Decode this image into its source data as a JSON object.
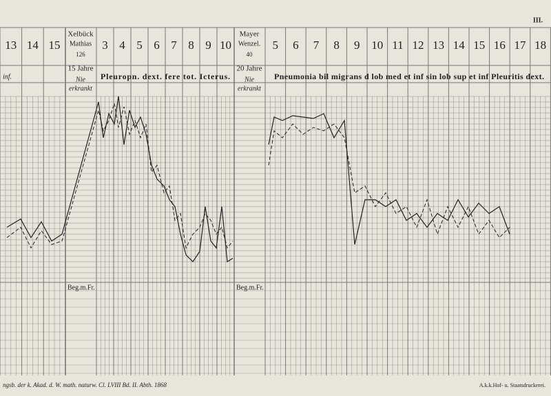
{
  "header": {
    "page": "III."
  },
  "left": {
    "pre_days": [
      "13",
      "14",
      "15"
    ],
    "note": "inf.",
    "patient": {
      "surname": "Xelbück",
      "given": "Mathias",
      "number": "126",
      "age": "15 Jahre",
      "history": [
        "Nie",
        "erkrankt"
      ]
    },
    "days": [
      "3",
      "4",
      "5",
      "6",
      "7",
      "8",
      "9",
      "10"
    ],
    "diagnosis": "Pleuropn. dext. fere tot. Icterus.",
    "onset": "Beg.m.Fr."
  },
  "right": {
    "patient": {
      "surname": "Mayer",
      "given": "Wenzel.",
      "number": "40",
      "age": "20 Jahre",
      "history": [
        "Nie",
        "erkrankt"
      ]
    },
    "days": [
      "5",
      "6",
      "7",
      "8",
      "9",
      "10",
      "11",
      "12",
      "13",
      "14",
      "15",
      "16",
      "17",
      "18"
    ],
    "diagnosis": "Pneumonia bil migrans d lob med et inf sin lob sup et inf Pleuritis dext.",
    "onset": "Beg.m.Fr."
  },
  "footer": {
    "left": "ngsb. der k. Akad. d. W. math. naturw. Cl. LVIII Bd. II. Abth. 1868",
    "right": "A.k.k.Hof- u. Staatsdruckerei."
  }
}
